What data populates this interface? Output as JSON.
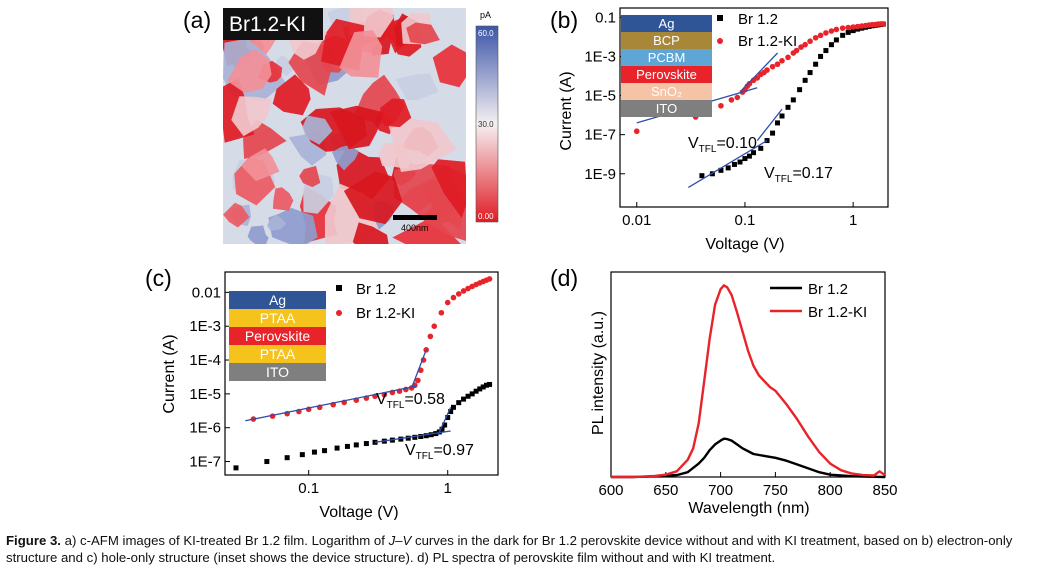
{
  "figure": {
    "panel_labels": [
      "(a)",
      "(b)",
      "(c)",
      "(d)"
    ],
    "afm": {
      "title": "Br1.2-KI",
      "scalebar_label": "400nm",
      "colorbar_unit": "pA",
      "colorbar_ticks": [
        "60.0",
        "30.0",
        "0.00"
      ],
      "colors": {
        "low": "#e01b24",
        "mid": "#f5f0f2",
        "high": "#3c55a8"
      }
    },
    "device_b": [
      "Ag",
      "BCP",
      "PCBM",
      "Perovskite",
      "SnO₂",
      "ITO"
    ],
    "device_c": [
      "Ag",
      "PTAA",
      "Perovskite",
      "PTAA",
      "ITO"
    ],
    "layer_colors": {
      "Ag": "#2f5597",
      "BCP": "#a88838",
      "PCBM": "#5ea6d6",
      "Perovskite": "#e8232a",
      "SnO₂": "#f5c3a5",
      "ITO": "#7f7f7f",
      "PTAA": "#f6c21c"
    },
    "annotations": {
      "b": [
        {
          "main": "V",
          "sub": "TFL",
          "val": "=0.10"
        },
        {
          "main": "V",
          "sub": "TFL",
          "val": "=0.17"
        }
      ],
      "c": [
        {
          "main": "V",
          "sub": "TFL",
          "val": "=0.58"
        },
        {
          "main": "V",
          "sub": "TFL",
          "val": "=0.97"
        }
      ]
    }
  },
  "chart_data": [
    {
      "panel": "b",
      "type": "scatter",
      "xlabel": "Voltage (V)",
      "ylabel": "Current (A)",
      "xscale": "log",
      "yscale": "log",
      "xlim": [
        0.007,
        2.1
      ],
      "ylim": [
        2e-11,
        0.3
      ],
      "xticks": [
        0.01,
        0.1,
        1
      ],
      "xtick_labels": [
        "0.01",
        "0.1",
        "1"
      ],
      "yticks": [
        1e-09,
        1e-07,
        1e-05,
        0.001,
        0.1
      ],
      "ytick_labels": [
        "1E-9",
        "1E-7",
        "1E-5",
        "1E-3",
        "0.1"
      ],
      "legend_position": "top-right",
      "series": [
        {
          "name": "Br 1.2",
          "marker": "square",
          "color": "#000000",
          "x": [
            0.04,
            0.05,
            0.06,
            0.07,
            0.08,
            0.09,
            0.1,
            0.11,
            0.12,
            0.14,
            0.16,
            0.18,
            0.2,
            0.22,
            0.25,
            0.28,
            0.32,
            0.36,
            0.4,
            0.45,
            0.5,
            0.56,
            0.63,
            0.7,
            0.8,
            0.9,
            1.0,
            1.1,
            1.2,
            1.3,
            1.4,
            1.5,
            1.6,
            1.7,
            1.8,
            1.9
          ],
          "y": [
            8e-10,
            1e-09,
            1.5e-09,
            2e-09,
            3e-09,
            4e-09,
            6e-09,
            8e-09,
            1.2e-08,
            2e-08,
            5e-08,
            1.2e-07,
            4e-07,
            9e-07,
            2.5e-06,
            6e-06,
            2e-05,
            6e-05,
            0.00015,
            0.0004,
            0.001,
            0.002,
            0.004,
            0.007,
            0.012,
            0.017,
            0.021,
            0.025,
            0.028,
            0.031,
            0.034,
            0.037,
            0.039,
            0.041,
            0.043,
            0.045
          ]
        },
        {
          "name": "Br 1.2-KI",
          "marker": "circle",
          "color": "#e8232a",
          "x": [
            0.01,
            0.035,
            0.06,
            0.075,
            0.085,
            0.095,
            0.1,
            0.105,
            0.11,
            0.12,
            0.13,
            0.14,
            0.15,
            0.16,
            0.18,
            0.2,
            0.22,
            0.25,
            0.28,
            0.3,
            0.33,
            0.36,
            0.4,
            0.45,
            0.5,
            0.56,
            0.63,
            0.7,
            0.8,
            0.9,
            1.0,
            1.1,
            1.2,
            1.3,
            1.4,
            1.5,
            1.6,
            1.7,
            1.8,
            1.9
          ],
          "y": [
            1.5e-07,
            8e-07,
            3e-06,
            6e-06,
            8e-06,
            1.5e-05,
            2e-05,
            3e-05,
            4e-05,
            6e-05,
            8e-05,
            0.00012,
            0.00015,
            0.0002,
            0.0003,
            0.0004,
            0.0006,
            0.0009,
            0.0015,
            0.002,
            0.003,
            0.004,
            0.006,
            0.009,
            0.012,
            0.016,
            0.02,
            0.024,
            0.028,
            0.03,
            0.032,
            0.034,
            0.036,
            0.038,
            0.04,
            0.042,
            0.043,
            0.045,
            0.046,
            0.046
          ]
        }
      ],
      "fits": [
        {
          "x": [
            0.01,
            0.13
          ],
          "y": [
            4e-07,
            2.5e-05
          ]
        },
        {
          "x": [
            0.09,
            0.2
          ],
          "y": [
            1.5e-05,
            0.0015
          ]
        },
        {
          "x": [
            0.03,
            0.16
          ],
          "y": [
            2e-10,
            5e-08
          ]
        },
        {
          "x": [
            0.13,
            0.22
          ],
          "y": [
            5e-08,
            2e-06
          ]
        }
      ]
    },
    {
      "panel": "c",
      "type": "scatter",
      "xlabel": "Voltage (V)",
      "ylabel": "Current (A)",
      "xscale": "log",
      "yscale": "log",
      "xlim": [
        0.025,
        2.3
      ],
      "ylim": [
        4e-08,
        0.04
      ],
      "xticks": [
        0.1,
        1
      ],
      "xtick_labels": [
        "0.1",
        "1"
      ],
      "yticks": [
        1e-07,
        1e-06,
        1e-05,
        0.0001,
        0.001,
        0.01
      ],
      "ytick_labels": [
        "1E-7",
        "1E-6",
        "1E-5",
        "1E-4",
        "1E-3",
        "0.01"
      ],
      "legend_position": "top-right",
      "series": [
        {
          "name": "Br 1.2",
          "marker": "square",
          "color": "#000000",
          "x": [
            0.03,
            0.05,
            0.07,
            0.09,
            0.11,
            0.13,
            0.16,
            0.19,
            0.22,
            0.26,
            0.3,
            0.35,
            0.4,
            0.46,
            0.52,
            0.58,
            0.64,
            0.7,
            0.76,
            0.82,
            0.87,
            0.91,
            0.95,
            1.0,
            1.05,
            1.1,
            1.2,
            1.3,
            1.4,
            1.5,
            1.6,
            1.7,
            1.8,
            1.9,
            2.0
          ],
          "y": [
            6.5e-08,
            1e-07,
            1.3e-07,
            1.6e-07,
            1.9e-07,
            2.1e-07,
            2.5e-07,
            2.8e-07,
            3.1e-07,
            3.4e-07,
            3.7e-07,
            4e-07,
            4.3e-07,
            4.6e-07,
            4.9e-07,
            5.2e-07,
            5.5e-07,
            5.8e-07,
            6.2e-07,
            6.7e-07,
            7.5e-07,
            9e-07,
            1.2e-06,
            2e-06,
            3e-06,
            4e-06,
            5.5e-06,
            7e-06,
            8.5e-06,
            1e-05,
            1.2e-05,
            1.4e-05,
            1.6e-05,
            1.8e-05,
            1.9e-05
          ]
        },
        {
          "name": "Br 1.2-KI",
          "marker": "circle",
          "color": "#e8232a",
          "x": [
            0.04,
            0.055,
            0.07,
            0.085,
            0.1,
            0.12,
            0.15,
            0.18,
            0.22,
            0.26,
            0.3,
            0.35,
            0.4,
            0.45,
            0.5,
            0.55,
            0.58,
            0.61,
            0.64,
            0.67,
            0.7,
            0.75,
            0.8,
            0.9,
            1.0,
            1.1,
            1.2,
            1.3,
            1.4,
            1.5,
            1.6,
            1.7,
            1.8,
            1.9,
            2.0
          ],
          "y": [
            1.8e-06,
            2.2e-06,
            2.6e-06,
            3e-06,
            3.5e-06,
            4e-06,
            4.8e-06,
            5.6e-06,
            6.5e-06,
            7.5e-06,
            8.5e-06,
            9.5e-06,
            1.1e-05,
            1.2e-05,
            1.35e-05,
            1.5e-05,
            1.8e-05,
            2.5e-05,
            5e-05,
            0.0001,
            0.0002,
            0.0005,
            0.001,
            0.0025,
            0.005,
            0.007,
            0.009,
            0.011,
            0.013,
            0.015,
            0.017,
            0.019,
            0.021,
            0.023,
            0.025
          ]
        }
      ],
      "fits": [
        {
          "x": [
            0.035,
            0.6
          ],
          "y": [
            1.6e-06,
            1.7e-05
          ]
        },
        {
          "x": [
            0.55,
            0.7
          ],
          "y": [
            1.5e-05,
            0.0002
          ]
        },
        {
          "x": [
            0.3,
            1.05
          ],
          "y": [
            3.7e-07,
            8e-07
          ]
        },
        {
          "x": [
            0.85,
            1.05
          ],
          "y": [
            6e-07,
            4e-06
          ]
        }
      ]
    },
    {
      "panel": "d",
      "type": "line",
      "xlabel": "Wavelength (nm)",
      "ylabel": "PL intensity (a.u.)",
      "xlim": [
        600,
        850
      ],
      "ylim": [
        0,
        1.07
      ],
      "xticks": [
        600,
        650,
        700,
        750,
        800,
        850
      ],
      "xtick_labels": [
        "600",
        "650",
        "700",
        "750",
        "800",
        "850"
      ],
      "yticks_shown": false,
      "legend_position": "top-right",
      "series": [
        {
          "name": "Br 1.2",
          "color": "#000000",
          "x": [
            600,
            620,
            640,
            660,
            670,
            680,
            685,
            690,
            695,
            700,
            703,
            706,
            710,
            715,
            720,
            730,
            740,
            750,
            760,
            770,
            780,
            790,
            800,
            820,
            840,
            850
          ],
          "y": [
            0,
            0,
            0.003,
            0.01,
            0.025,
            0.07,
            0.1,
            0.14,
            0.17,
            0.19,
            0.2,
            0.198,
            0.19,
            0.17,
            0.15,
            0.12,
            0.11,
            0.1,
            0.085,
            0.065,
            0.045,
            0.025,
            0.012,
            0.004,
            0.001,
            0
          ]
        },
        {
          "name": "Br 1.2-KI",
          "color": "#e8232a",
          "x": [
            600,
            620,
            640,
            650,
            660,
            670,
            675,
            680,
            685,
            690,
            695,
            700,
            703,
            706,
            710,
            715,
            720,
            725,
            730,
            735,
            740,
            745,
            750,
            760,
            770,
            780,
            790,
            800,
            810,
            820,
            830,
            840,
            845,
            850
          ],
          "y": [
            0,
            0,
            0.005,
            0.012,
            0.03,
            0.09,
            0.15,
            0.28,
            0.5,
            0.72,
            0.9,
            0.98,
            1.0,
            0.99,
            0.95,
            0.86,
            0.76,
            0.66,
            0.58,
            0.53,
            0.5,
            0.47,
            0.45,
            0.38,
            0.3,
            0.21,
            0.13,
            0.07,
            0.035,
            0.018,
            0.01,
            0.008,
            0.03,
            0.01
          ]
        }
      ]
    }
  ],
  "caption": {
    "label": "Figure 3.",
    "parts": [
      {
        "text": "  a) c-AFM images of KI-treated Br 1.2 film. Logarithm of "
      },
      {
        "text": "J–V",
        "italic": true
      },
      {
        "text": " curves in the dark for Br 1.2 perovskite device without and with KI treatment, based on b) electron-only structure and c) hole-only structure (inset shows the device structure). d) PL spectra of perovskite film without and with KI treatment."
      }
    ]
  }
}
